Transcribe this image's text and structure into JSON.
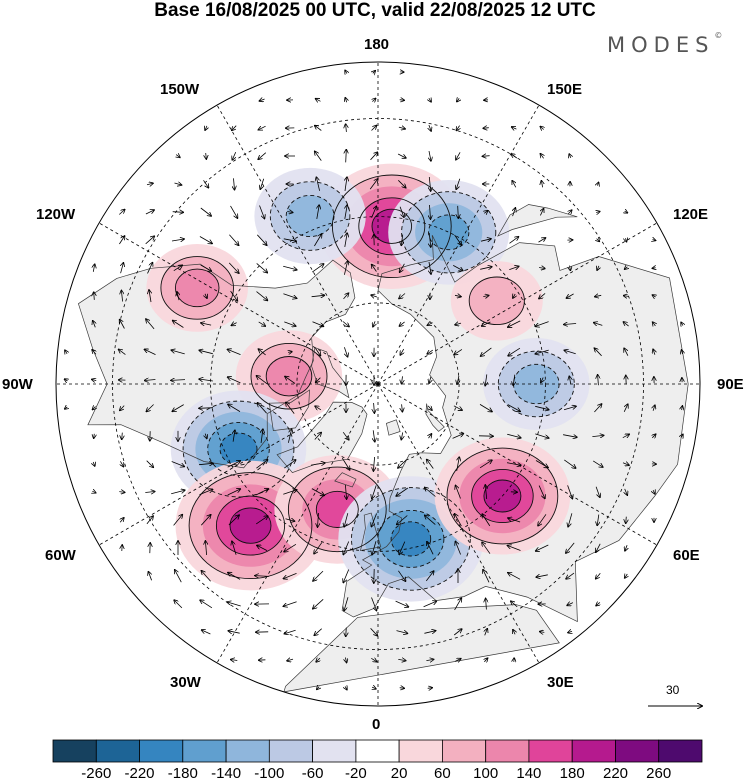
{
  "title": "Base 16/08/2025 00 UTC, valid 22/08/2025 12 UTC",
  "brand": "MODES",
  "brand_mark": "©",
  "longitude_labels": {
    "lon_180": "180",
    "lon_150w": "150W",
    "lon_150e": "150E",
    "lon_120w": "120W",
    "lon_120e": "120E",
    "lon_90w": "90W",
    "lon_90e": "90E",
    "lon_60w": "60W",
    "lon_60e": "60E",
    "lon_30w": "30W",
    "lon_30e": "30E",
    "lon_0": "0"
  },
  "wind_reference": {
    "value": "30",
    "icon": "arrow-right-icon"
  },
  "colorbar": {
    "tick_labels": [
      "-260",
      "-220",
      "-180",
      "-140",
      "-100",
      "-60",
      "-20",
      "20",
      "60",
      "100",
      "140",
      "180",
      "220",
      "260"
    ],
    "colors": [
      "#16415f",
      "#1d6496",
      "#3585c0",
      "#609fcf",
      "#8fb6dc",
      "#bcc9e4",
      "#e2e2f0",
      "#ffffff",
      "#f9d7dc",
      "#f3b0c0",
      "#ec86ac",
      "#e0449a",
      "#b51a8e",
      "#7e0b80",
      "#4e0a6e"
    ]
  },
  "anomaly_centers": [
    {
      "name": "pacific-high",
      "lon": 175,
      "lat": 52,
      "value": 200
    },
    {
      "name": "aleutian-low",
      "lon": 155,
      "lat": 50,
      "value": -150
    },
    {
      "name": "gulf-alaska-low",
      "lon": -158,
      "lat": 47,
      "value": -130
    },
    {
      "name": "ne-pacific-high",
      "lon": -118,
      "lat": 42,
      "value": 110
    },
    {
      "name": "siberian-high",
      "lon": 125,
      "lat": 55,
      "value": 90
    },
    {
      "name": "canada-high",
      "lon": -95,
      "lat": 68,
      "value": 120
    },
    {
      "name": "hudson-low",
      "lon": -65,
      "lat": 53,
      "value": -180
    },
    {
      "name": "central-asia-low",
      "lon": 90,
      "lat": 52,
      "value": -120
    },
    {
      "name": "atlantic-high",
      "lon": -42,
      "lat": 45,
      "value": 210
    },
    {
      "name": "greenland-high",
      "lon": -18,
      "lat": 58,
      "value": 160
    },
    {
      "name": "scandinavia-low",
      "lon": 12,
      "lat": 52,
      "value": -200
    },
    {
      "name": "russia-high",
      "lon": 48,
      "lat": 50,
      "value": 180
    }
  ]
}
